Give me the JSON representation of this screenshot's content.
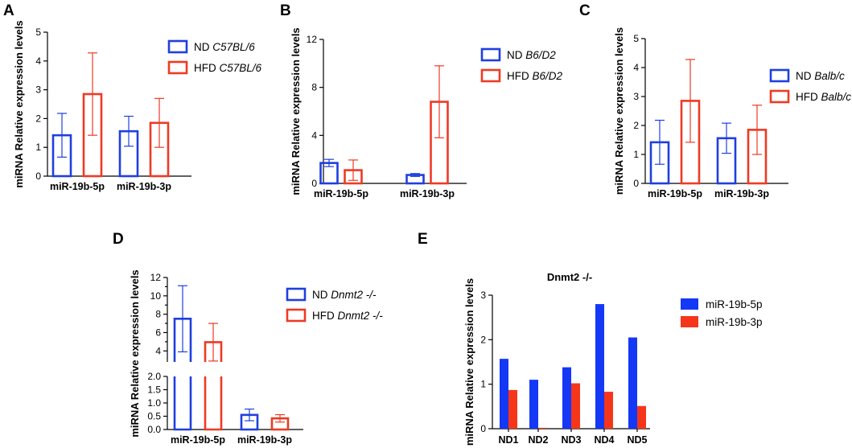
{
  "colors": {
    "nd": "#1f3fe0",
    "hfd": "#ee3a24",
    "blue_fill": "#1438f5",
    "red_fill": "#f5361b"
  },
  "chart_data": [
    {
      "panel": "A",
      "type": "bar",
      "ylabel": "miRNA Relative expression levels",
      "yticks": [
        "0",
        "1",
        "2",
        "3",
        "4",
        "5"
      ],
      "ylim": [
        0,
        5
      ],
      "categories": [
        "miR-19b-5p",
        "miR-19b-3p"
      ],
      "series": [
        {
          "name": "ND",
          "name_italic": "C57BL/6",
          "values": [
            1.42,
            1.56
          ],
          "errors": [
            0.76,
            0.52
          ]
        },
        {
          "name": "HFD",
          "name_italic": "C57BL/6",
          "values": [
            2.85,
            1.85
          ],
          "errors": [
            1.43,
            0.85
          ]
        }
      ]
    },
    {
      "panel": "B",
      "type": "bar",
      "ylabel": "miRNA Relative expression levels",
      "yticks": [
        "0",
        "4",
        "8",
        "12"
      ],
      "ylim": [
        0,
        12
      ],
      "categories": [
        "miR-19b-5p",
        "miR-19b-3p"
      ],
      "series": [
        {
          "name": "ND",
          "name_italic": "B6/D2",
          "values": [
            1.7,
            0.7
          ],
          "errors": [
            0.3,
            0.12
          ]
        },
        {
          "name": "HFD",
          "name_italic": "B6/D2",
          "values": [
            1.1,
            6.8
          ],
          "errors": [
            0.85,
            3.0
          ]
        }
      ]
    },
    {
      "panel": "C",
      "type": "bar",
      "ylabel": "miRNA Relative expression levels",
      "yticks": [
        "0",
        "1",
        "2",
        "3",
        "4",
        "5"
      ],
      "ylim": [
        0,
        5
      ],
      "categories": [
        "miR-19b-5p",
        "miR-19b-3p"
      ],
      "series": [
        {
          "name": "ND",
          "name_italic": "Balb/c",
          "values": [
            1.42,
            1.56
          ],
          "errors": [
            0.76,
            0.52
          ]
        },
        {
          "name": "HFD",
          "name_italic": "Balb/c",
          "values": [
            2.85,
            1.85
          ],
          "errors": [
            1.43,
            0.85
          ]
        }
      ]
    },
    {
      "panel": "D",
      "type": "bar",
      "broken_axis": true,
      "ylabel": "miRNA Relative expression levels",
      "yticks_upper": [
        "4",
        "6",
        "8",
        "10",
        "12"
      ],
      "ylim_upper": [
        2.8,
        12
      ],
      "yticks_lower": [
        "0.0",
        "0.5",
        "1.0",
        "1.5",
        "2.0"
      ],
      "ylim_lower": [
        0,
        2
      ],
      "categories": [
        "miR-19b-5p",
        "miR-19b-3p"
      ],
      "series": [
        {
          "name": "ND",
          "name_italic": "Dnmt2 -/-",
          "values": [
            7.5,
            0.55
          ],
          "errors": [
            3.6,
            0.22
          ]
        },
        {
          "name": "HFD",
          "name_italic": "Dnmt2 -/-",
          "values": [
            4.95,
            0.42
          ],
          "errors": [
            2.05,
            0.14
          ]
        }
      ]
    },
    {
      "panel": "E",
      "type": "bar",
      "title": "Dnmt2 -/-",
      "ylabel": "miRNA Relative expression levels",
      "yticks": [
        "0",
        "1",
        "2",
        "3"
      ],
      "ylim": [
        0,
        3
      ],
      "categories": [
        "ND1",
        "ND2",
        "ND3",
        "ND4",
        "ND5"
      ],
      "series": [
        {
          "name": "miR-19b-5p",
          "values": [
            1.57,
            1.1,
            1.38,
            2.8,
            2.05
          ]
        },
        {
          "name": "miR-19b-3p",
          "values": [
            0.87,
            0.02,
            1.02,
            0.83,
            0.51
          ]
        }
      ]
    }
  ]
}
